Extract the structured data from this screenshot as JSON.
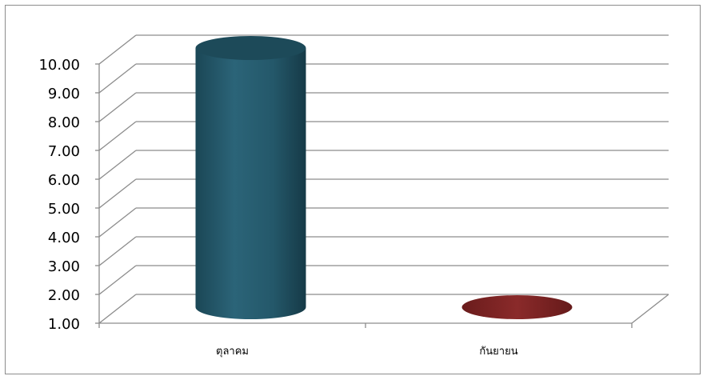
{
  "chart_data": {
    "type": "bar",
    "style": "3d-cylinder",
    "title": "",
    "xlabel": "",
    "ylabel": "",
    "categories": [
      "ตุลาคม",
      "กันยายน"
    ],
    "values": [
      10.0,
      1.0
    ],
    "colors": [
      "#24586a",
      "#7a2424"
    ],
    "ylim": [
      1.0,
      10.0
    ],
    "yticks": [
      "1.00",
      "2.00",
      "3.00",
      "4.00",
      "5.00",
      "6.00",
      "7.00",
      "8.00",
      "9.00",
      "10.00"
    ],
    "grid": true,
    "legend": "none"
  }
}
